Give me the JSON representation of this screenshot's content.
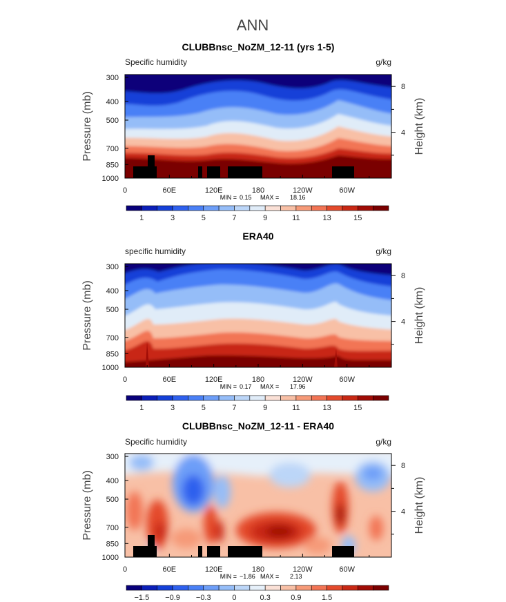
{
  "figure": {
    "title": "ANN"
  },
  "chart_data": [
    {
      "type": "heatmap",
      "title": "CLUBBnsc_NoZM_12-11 (yrs 1-5)",
      "field": "Specific humidity",
      "units": "g/kg",
      "ylabel": "Pressure (mb)",
      "y2label": "Height (km)",
      "xticks": [
        "0",
        "60E",
        "120E",
        "180",
        "120W",
        "60W"
      ],
      "yticks": [
        "300",
        "400",
        "500",
        "700",
        "850",
        "1000"
      ],
      "y2ticks": [
        "8",
        "4"
      ],
      "stats": {
        "min_label": "MIN =",
        "min": "0.15",
        "max_label": "MAX =",
        "max": "18.16"
      },
      "colorbar": {
        "labels": [
          "1",
          "3",
          "5",
          "7",
          "9",
          "11",
          "13",
          "15"
        ],
        "colors": [
          "#08007a",
          "#0b1fb8",
          "#1440d8",
          "#2e60ee",
          "#4a80f6",
          "#6d9ef8",
          "#95bdf8",
          "#bcd6f8",
          "#e0ecf8",
          "#fae0d6",
          "#f8c0a6",
          "#f69a78",
          "#f27454",
          "#e44a2c",
          "#c82814",
          "#a00c06",
          "#7a0000"
        ]
      }
    },
    {
      "type": "heatmap",
      "title": "ERA40",
      "field": "specific humidity",
      "units": "g/kg",
      "ylabel": "Pressure (mb)",
      "y2label": "Height (km)",
      "xticks": [
        "0",
        "60E",
        "120E",
        "180",
        "120W",
        "60W"
      ],
      "yticks": [
        "300",
        "400",
        "500",
        "700",
        "850",
        "1000"
      ],
      "y2ticks": [
        "8",
        "4"
      ],
      "stats": {
        "min_label": "MIN =",
        "min": "0.17",
        "max_label": "MAX =",
        "max": "17.96"
      },
      "colorbar": {
        "labels": [
          "1",
          "3",
          "5",
          "7",
          "9",
          "11",
          "13",
          "15"
        ],
        "colors": [
          "#08007a",
          "#0b1fb8",
          "#1440d8",
          "#2e60ee",
          "#4a80f6",
          "#6d9ef8",
          "#95bdf8",
          "#bcd6f8",
          "#e0ecf8",
          "#fae0d6",
          "#f8c0a6",
          "#f69a78",
          "#f27454",
          "#e44a2c",
          "#c82814",
          "#a00c06",
          "#7a0000"
        ]
      }
    },
    {
      "type": "heatmap",
      "title": "CLUBBnsc_NoZM_12-11 - ERA40",
      "field": "Specific humidity",
      "units": "g/kg",
      "ylabel": "Pressure (mb)",
      "y2label": "Height (km)",
      "xticks": [
        "0",
        "60E",
        "120E",
        "180",
        "120W",
        "60W"
      ],
      "yticks": [
        "300",
        "400",
        "500",
        "700",
        "850",
        "1000"
      ],
      "y2ticks": [
        "8",
        "4"
      ],
      "stats": {
        "min_label": "MIN =",
        "min": "−1.86",
        "max_label": "MAX =",
        "max": "2.13"
      },
      "colorbar": {
        "labels": [
          "−1.5",
          "−0.9",
          "−0.3",
          "0",
          "0.3",
          "0.9",
          "1.5"
        ],
        "colors": [
          "#08007a",
          "#0b1fb8",
          "#1440d8",
          "#2e60ee",
          "#4a80f6",
          "#6d9ef8",
          "#95bdf8",
          "#bcd6f8",
          "#e6f0fa",
          "#fae0d6",
          "#f8c0a6",
          "#f69a78",
          "#f27454",
          "#e44a2c",
          "#c82814",
          "#a00c06",
          "#7a0000"
        ]
      }
    }
  ]
}
